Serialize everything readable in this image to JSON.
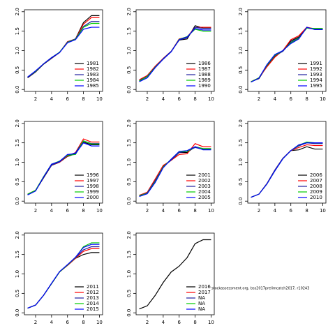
{
  "chart_data": [
    {
      "type": "line",
      "x": [
        1,
        2,
        3,
        4,
        5,
        6,
        7,
        8,
        9,
        10
      ],
      "xlim": [
        0.6,
        10.4
      ],
      "xticks": [
        2,
        4,
        6,
        8,
        10
      ],
      "ylim": [
        -0.05,
        2.05
      ],
      "yticks": [
        {
          "value": 0,
          "label": "0.0"
        },
        0.5,
        {
          "value": 1,
          "label": "1.0"
        },
        1.5,
        {
          "value": 2,
          "label": "2.0"
        }
      ],
      "series": [
        {
          "name": "1981",
          "color": "#000000",
          "values": [
            0.3,
            0.45,
            0.65,
            0.8,
            0.95,
            1.22,
            1.3,
            1.72,
            1.9,
            1.9
          ]
        },
        {
          "name": "1982",
          "color": "#ff0000",
          "values": [
            0.31,
            0.46,
            0.66,
            0.81,
            0.95,
            1.23,
            1.3,
            1.68,
            1.85,
            1.85
          ]
        },
        {
          "name": "1983",
          "color": "#2020a0",
          "values": [
            0.31,
            0.46,
            0.66,
            0.81,
            0.95,
            1.22,
            1.3,
            1.62,
            1.75,
            1.75
          ]
        },
        {
          "name": "1984",
          "color": "#00cc00",
          "values": [
            0.32,
            0.47,
            0.66,
            0.82,
            0.96,
            1.21,
            1.29,
            1.6,
            1.7,
            1.7
          ]
        },
        {
          "name": "1985",
          "color": "#0000ff",
          "values": [
            0.32,
            0.48,
            0.66,
            0.82,
            0.95,
            1.2,
            1.28,
            1.55,
            1.6,
            1.6
          ]
        }
      ]
    },
    {
      "type": "line",
      "x": [
        1,
        2,
        3,
        4,
        5,
        6,
        7,
        8,
        9,
        10
      ],
      "xlim": [
        0.6,
        10.4
      ],
      "xticks": [
        2,
        4,
        6,
        8,
        10
      ],
      "ylim": [
        -0.05,
        2.05
      ],
      "yticks": [
        {
          "value": 0,
          "label": "0.0"
        },
        0.5,
        {
          "value": 1,
          "label": "1.0"
        },
        1.5,
        {
          "value": 2,
          "label": "2.0"
        }
      ],
      "series": [
        {
          "name": "1986",
          "color": "#000000",
          "values": [
            0.22,
            0.33,
            0.57,
            0.8,
            0.98,
            1.27,
            1.3,
            1.64,
            1.58,
            1.58
          ]
        },
        {
          "name": "1987",
          "color": "#ff0000",
          "values": [
            0.25,
            0.36,
            0.6,
            0.8,
            0.98,
            1.3,
            1.35,
            1.6,
            1.6,
            1.6
          ]
        },
        {
          "name": "1988",
          "color": "#2020a0",
          "values": [
            0.23,
            0.34,
            0.58,
            0.79,
            0.98,
            1.28,
            1.33,
            1.6,
            1.57,
            1.57
          ]
        },
        {
          "name": "1989",
          "color": "#00cc00",
          "values": [
            0.22,
            0.33,
            0.57,
            0.78,
            0.97,
            1.29,
            1.36,
            1.55,
            1.5,
            1.5
          ]
        },
        {
          "name": "1990",
          "color": "#0000ff",
          "values": [
            0.2,
            0.3,
            0.56,
            0.78,
            0.97,
            1.28,
            1.35,
            1.57,
            1.53,
            1.53
          ]
        }
      ]
    },
    {
      "type": "line",
      "x": [
        1,
        2,
        3,
        4,
        5,
        6,
        7,
        8,
        9,
        10
      ],
      "xlim": [
        0.6,
        10.4
      ],
      "xticks": [
        2,
        4,
        6,
        8,
        10
      ],
      "ylim": [
        -0.05,
        2.05
      ],
      "yticks": [
        {
          "value": 0,
          "label": "0.0"
        },
        0.5,
        {
          "value": 1,
          "label": "1.0"
        },
        1.5,
        {
          "value": 2,
          "label": "2.0"
        }
      ],
      "series": [
        {
          "name": "1991",
          "color": "#000000",
          "values": [
            0.2,
            0.28,
            0.6,
            0.85,
            1.0,
            1.25,
            1.35,
            1.6,
            1.55,
            1.55
          ]
        },
        {
          "name": "1992",
          "color": "#ff0000",
          "values": [
            0.2,
            0.3,
            0.58,
            0.83,
            1.0,
            1.28,
            1.38,
            1.6,
            1.56,
            1.56
          ]
        },
        {
          "name": "1993",
          "color": "#2020a0",
          "values": [
            0.19,
            0.29,
            0.62,
            0.87,
            0.98,
            1.22,
            1.33,
            1.58,
            1.55,
            1.55
          ]
        },
        {
          "name": "1994",
          "color": "#00cc00",
          "values": [
            0.2,
            0.3,
            0.62,
            0.88,
            1.0,
            1.2,
            1.32,
            1.58,
            1.57,
            1.57
          ]
        },
        {
          "name": "1995",
          "color": "#0000ff",
          "values": [
            0.19,
            0.29,
            0.64,
            0.9,
            1.0,
            1.18,
            1.3,
            1.6,
            1.54,
            1.54
          ]
        }
      ]
    },
    {
      "type": "line",
      "x": [
        1,
        2,
        3,
        4,
        5,
        6,
        7,
        8,
        9,
        10
      ],
      "xlim": [
        0.6,
        10.4
      ],
      "xticks": [
        2,
        4,
        6,
        8,
        10
      ],
      "ylim": [
        -0.05,
        2.05
      ],
      "yticks": [
        {
          "value": 0,
          "label": "0.0"
        },
        0.5,
        {
          "value": 1,
          "label": "1.0"
        },
        1.5,
        {
          "value": 2,
          "label": "2.0"
        }
      ],
      "series": [
        {
          "name": "1996",
          "color": "#000000",
          "values": [
            0.17,
            0.27,
            0.6,
            0.92,
            1.0,
            1.15,
            1.22,
            1.52,
            1.45,
            1.45
          ]
        },
        {
          "name": "1997",
          "color": "#ff0000",
          "values": [
            0.18,
            0.28,
            0.62,
            0.93,
            1.0,
            1.16,
            1.25,
            1.6,
            1.52,
            1.52
          ]
        },
        {
          "name": "1998",
          "color": "#2020a0",
          "values": [
            0.17,
            0.27,
            0.62,
            0.93,
            1.01,
            1.18,
            1.24,
            1.55,
            1.48,
            1.48
          ]
        },
        {
          "name": "1999",
          "color": "#00cc00",
          "values": [
            0.18,
            0.28,
            0.63,
            0.95,
            1.03,
            1.18,
            1.2,
            1.55,
            1.47,
            1.47
          ]
        },
        {
          "name": "2000",
          "color": "#0000ff",
          "values": [
            0.16,
            0.26,
            0.62,
            0.95,
            1.02,
            1.2,
            1.22,
            1.5,
            1.42,
            1.42
          ]
        }
      ]
    },
    {
      "type": "line",
      "x": [
        1,
        2,
        3,
        4,
        5,
        6,
        7,
        8,
        9,
        10
      ],
      "xlim": [
        0.6,
        10.4
      ],
      "xticks": [
        2,
        4,
        6,
        8,
        10
      ],
      "ylim": [
        -0.05,
        2.05
      ],
      "yticks": [
        {
          "value": 0,
          "label": "0.0"
        },
        0.5,
        {
          "value": 1,
          "label": "1.0"
        },
        1.5,
        {
          "value": 2,
          "label": "2.0"
        }
      ],
      "series": [
        {
          "name": "2001",
          "color": "#000000",
          "values": [
            0.15,
            0.22,
            0.55,
            0.9,
            1.05,
            1.25,
            1.25,
            1.4,
            1.35,
            1.35
          ]
        },
        {
          "name": "2002",
          "color": "#ff0000",
          "values": [
            0.15,
            0.23,
            0.57,
            0.92,
            1.05,
            1.2,
            1.22,
            1.48,
            1.4,
            1.4
          ]
        },
        {
          "name": "2003",
          "color": "#2020a0",
          "values": [
            0.14,
            0.21,
            0.53,
            0.88,
            1.06,
            1.25,
            1.28,
            1.38,
            1.33,
            1.33
          ]
        },
        {
          "name": "2004",
          "color": "#00cc00",
          "values": [
            0.14,
            0.2,
            0.5,
            0.88,
            1.08,
            1.27,
            1.28,
            1.4,
            1.35,
            1.35
          ]
        },
        {
          "name": "2005",
          "color": "#0000ff",
          "values": [
            0.12,
            0.19,
            0.48,
            0.86,
            1.08,
            1.28,
            1.3,
            1.4,
            1.32,
            1.32
          ]
        }
      ]
    },
    {
      "type": "line",
      "x": [
        1,
        2,
        3,
        4,
        5,
        6,
        7,
        8,
        9,
        10
      ],
      "xlim": [
        0.6,
        10.4
      ],
      "xticks": [
        2,
        4,
        6,
        8,
        10
      ],
      "ylim": [
        -0.05,
        2.05
      ],
      "yticks": [
        {
          "value": 0,
          "label": "0.0"
        },
        0.5,
        {
          "value": 1,
          "label": "1.0"
        },
        1.5,
        {
          "value": 2,
          "label": "2.0"
        }
      ],
      "series": [
        {
          "name": "2006",
          "color": "#000000",
          "values": [
            0.1,
            0.18,
            0.45,
            0.8,
            1.1,
            1.3,
            1.32,
            1.4,
            1.34,
            1.34
          ]
        },
        {
          "name": "2007",
          "color": "#ff0000",
          "values": [
            0.1,
            0.18,
            0.45,
            0.8,
            1.1,
            1.3,
            1.38,
            1.45,
            1.43,
            1.43
          ]
        },
        {
          "name": "2008",
          "color": "#2020a0",
          "values": [
            0.1,
            0.18,
            0.45,
            0.8,
            1.1,
            1.3,
            1.42,
            1.5,
            1.48,
            1.48
          ]
        },
        {
          "name": "2009",
          "color": "#00cc00",
          "values": [
            0.1,
            0.18,
            0.44,
            0.78,
            1.09,
            1.3,
            1.44,
            1.52,
            1.5,
            1.5
          ]
        },
        {
          "name": "2010",
          "color": "#0000ff",
          "values": [
            0.1,
            0.18,
            0.44,
            0.78,
            1.09,
            1.3,
            1.45,
            1.5,
            1.5,
            1.5
          ]
        }
      ]
    },
    {
      "type": "line",
      "x": [
        1,
        2,
        3,
        4,
        5,
        6,
        7,
        8,
        9,
        10
      ],
      "xlim": [
        0.6,
        10.4
      ],
      "xticks": [
        2,
        4,
        6,
        8,
        10
      ],
      "ylim": [
        -0.05,
        2.05
      ],
      "yticks": [
        {
          "value": 0,
          "label": "0.0"
        },
        0.5,
        {
          "value": 1,
          "label": "1.0"
        },
        1.5,
        {
          "value": 2,
          "label": "2.0"
        }
      ],
      "series": [
        {
          "name": "2011",
          "color": "#000000",
          "values": [
            0.12,
            0.2,
            0.45,
            0.75,
            1.05,
            1.22,
            1.4,
            1.5,
            1.55,
            1.55
          ]
        },
        {
          "name": "2012",
          "color": "#ff0000",
          "values": [
            0.12,
            0.2,
            0.45,
            0.75,
            1.05,
            1.22,
            1.4,
            1.58,
            1.65,
            1.65
          ]
        },
        {
          "name": "2013",
          "color": "#2020a0",
          "values": [
            0.12,
            0.2,
            0.45,
            0.75,
            1.05,
            1.23,
            1.42,
            1.62,
            1.7,
            1.7
          ]
        },
        {
          "name": "2014",
          "color": "#00cc00",
          "values": [
            0.12,
            0.2,
            0.45,
            0.75,
            1.05,
            1.23,
            1.42,
            1.7,
            1.8,
            1.8
          ]
        },
        {
          "name": "2015",
          "color": "#0000ff",
          "values": [
            0.12,
            0.2,
            0.45,
            0.76,
            1.06,
            1.24,
            1.43,
            1.68,
            1.76,
            1.76
          ]
        }
      ]
    },
    {
      "type": "line",
      "x": [
        1,
        2,
        3,
        4,
        5,
        6,
        7,
        8,
        9,
        10
      ],
      "xlim": [
        0.6,
        10.4
      ],
      "xticks": [
        2,
        4,
        6,
        8,
        10
      ],
      "ylim": [
        -0.05,
        2.05
      ],
      "yticks": [
        {
          "value": 0,
          "label": "0.0"
        },
        0.5,
        {
          "value": 1,
          "label": "1.0"
        },
        1.5,
        {
          "value": 2,
          "label": "2.0"
        }
      ],
      "series": [
        {
          "name": "2016",
          "color": "#000000",
          "values": [
            0.1,
            0.18,
            0.45,
            0.78,
            1.05,
            1.2,
            1.42,
            1.78,
            1.88,
            1.88
          ]
        },
        {
          "name": "2017",
          "color": "#ff0000",
          "values": [
            null,
            null,
            null,
            null,
            null,
            null,
            null,
            null,
            null,
            null
          ]
        },
        {
          "name": "NA",
          "color": "#2020a0",
          "values": [
            null,
            null,
            null,
            null,
            null,
            null,
            null,
            null,
            null,
            null
          ]
        },
        {
          "name": "NA",
          "color": "#00cc00",
          "values": [
            null,
            null,
            null,
            null,
            null,
            null,
            null,
            null,
            null,
            null
          ]
        },
        {
          "name": "NA",
          "color": "#0000ff",
          "values": [
            null,
            null,
            null,
            null,
            null,
            null,
            null,
            null,
            null,
            null
          ]
        }
      ]
    }
  ],
  "footnote": "stockassessment.org, bss2017prelimcatch2017, r10243"
}
